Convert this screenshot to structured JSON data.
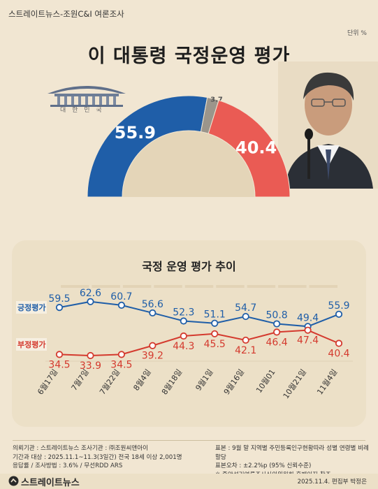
{
  "header": {
    "source": "스트레이트뉴스-조원C&I 여론조사",
    "unit": "단위 %",
    "title": "이 대통령 국정운영 평가",
    "emblem_text": "대 한 민 국"
  },
  "colors": {
    "positive": "#1f5ea8",
    "neutral": "#9b958b",
    "negative": "#ea5b54",
    "background": "#f1e6d2"
  },
  "chart_data": [
    {
      "type": "pie",
      "slices": [
        {
          "label": "55.9",
          "value": 55.9,
          "color": "#1f5ea8"
        },
        {
          "label": "3.7",
          "value": 3.7,
          "color": "#9b958b"
        },
        {
          "label": "40.4",
          "value": 40.4,
          "color": "#ea5b54"
        }
      ]
    },
    {
      "type": "line",
      "title": "국정 운영 평가 추이",
      "categories": [
        "6월17일",
        "7월7일",
        "7월22일",
        "8월4일",
        "8월18일",
        "9월1일",
        "9월16일",
        "10월01",
        "10월21일",
        "11월4일"
      ],
      "series": [
        {
          "name": "긍정평가",
          "values": [
            59.5,
            62.6,
            60.7,
            56.6,
            52.3,
            51.1,
            54.7,
            50.8,
            49.4,
            55.9
          ],
          "color": "#1f5ea8"
        },
        {
          "name": "부정평가",
          "values": [
            34.5,
            33.9,
            34.5,
            39.2,
            44.3,
            45.5,
            42.1,
            46.4,
            47.4,
            40.4
          ],
          "color": "#d43a2e"
        }
      ],
      "value_labels": {
        "positive": [
          "59.5",
          "62.6",
          "60.7",
          "56.6",
          "52.3",
          "51.1",
          "54.7",
          "50.8",
          "49.4",
          "55.9"
        ],
        "negative": [
          "34.5",
          "33.9",
          "34.5",
          "39.2",
          "44.3",
          "45.5",
          "42.1",
          "46.4",
          "47.4",
          "40.4"
        ]
      }
    }
  ],
  "footer": {
    "line1": "의뢰기관 : 스트레이트뉴스     조사기관 : ㈜조원씨앤아이",
    "line2": "기간과 대상 : 2025.11.1~11.3(3일간)   전국 18세 이상  2,001명",
    "line3": "응답률 / 조사방법 : 3.6% / 무선RDD ARS",
    "line4": "표본 : 9월 말 지역별 주민등록인구현황따라 성별 연령별 비례할당",
    "line5": "표본오차 : ±2.2%p (95% 신뢰수준)",
    "line6": "※ 중앙선거여론조사심의위원회 홈페이지 참조",
    "brand": "스트레이트뉴스",
    "date": "2025.11.4. 편집부 박정은"
  }
}
